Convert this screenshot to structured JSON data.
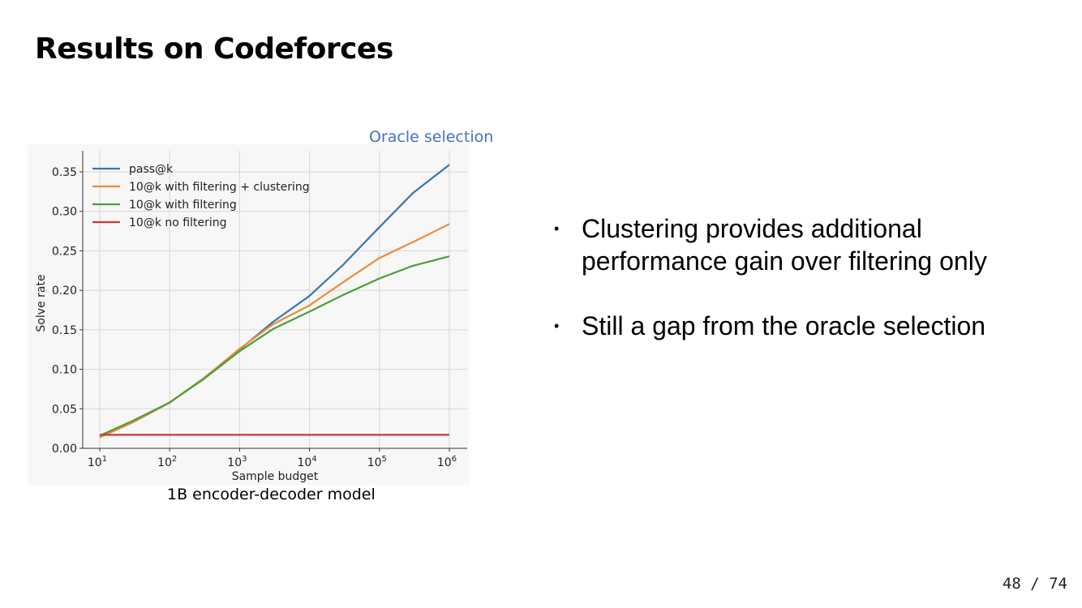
{
  "slide": {
    "title": "Results on Codeforces",
    "annotation": "Oracle selection",
    "caption": "1B encoder-decoder model",
    "bullets": [
      "Clustering provides additional performance gain over filtering only",
      "Still a gap from the oracle selection"
    ],
    "page": "48 / 74"
  },
  "chart_data": {
    "type": "line",
    "title": "",
    "xlabel": "Sample budget",
    "ylabel": "Solve rate",
    "xscale": "log",
    "xlim": [
      10,
      1000000
    ],
    "ylim": [
      0,
      0.37
    ],
    "grid": true,
    "legend_position": "top-left",
    "x": [
      10,
      30,
      100,
      300,
      1000,
      3000,
      10000,
      30000,
      100000,
      300000,
      1000000
    ],
    "xticks": [
      {
        "base": "10",
        "exp": "1"
      },
      {
        "base": "10",
        "exp": "2"
      },
      {
        "base": "10",
        "exp": "3"
      },
      {
        "base": "10",
        "exp": "4"
      },
      {
        "base": "10",
        "exp": "5"
      },
      {
        "base": "10",
        "exp": "6"
      }
    ],
    "yticks": [
      "0.00",
      "0.05",
      "0.10",
      "0.15",
      "0.20",
      "0.25",
      "0.30",
      "0.35"
    ],
    "series": [
      {
        "name": "pass@k",
        "color": "#3a75b0",
        "values": [
          0.014,
          0.033,
          0.058,
          0.088,
          0.125,
          0.16,
          0.193,
          0.232,
          0.28,
          0.323,
          0.359
        ]
      },
      {
        "name": "10@k with filtering + clustering",
        "color": "#ee8a36",
        "values": [
          0.014,
          0.033,
          0.058,
          0.088,
          0.126,
          0.157,
          0.181,
          0.21,
          0.241,
          0.261,
          0.284
        ]
      },
      {
        "name": "10@k with filtering",
        "color": "#4b9e3b",
        "values": [
          0.016,
          0.035,
          0.058,
          0.087,
          0.123,
          0.151,
          0.173,
          0.194,
          0.215,
          0.231,
          0.243
        ]
      },
      {
        "name": "10@k no filtering",
        "color": "#c9393a",
        "values": [
          0.017,
          0.017,
          0.017,
          0.017,
          0.017,
          0.017,
          0.017,
          0.017,
          0.017,
          0.017,
          0.017
        ]
      }
    ]
  }
}
